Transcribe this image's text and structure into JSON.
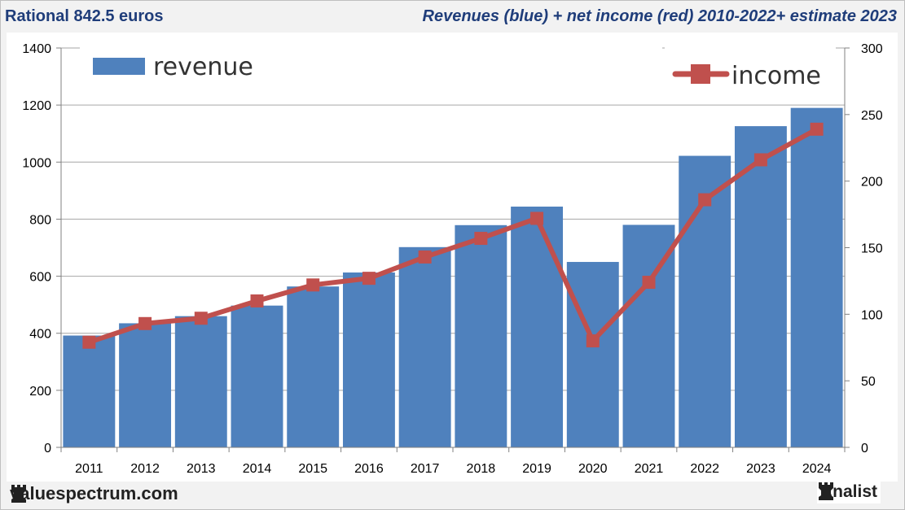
{
  "header": {
    "left_title": "Rational 842.5 euros",
    "right_title": "Revenues (blue) + net income (red) 2010-2022+ estimate 2023"
  },
  "footer": {
    "site": "valuespectrum.com",
    "brand": "Analist"
  },
  "colors": {
    "bar": "#4f81bd",
    "line": "#c0504d",
    "title": "#1f3d7a"
  },
  "chart_data": {
    "type": "bar",
    "categories": [
      "2011",
      "2012",
      "2013",
      "2014",
      "2015",
      "2016",
      "2017",
      "2018",
      "2019",
      "2020",
      "2021",
      "2022",
      "2023",
      "2024"
    ],
    "series": [
      {
        "name": "revenue",
        "type": "bar",
        "axis": "left",
        "values": [
          392,
          435,
          460,
          497,
          564,
          613,
          702,
          779,
          844,
          650,
          780,
          1022,
          1126,
          1190
        ]
      },
      {
        "name": "income",
        "type": "line",
        "axis": "right",
        "values": [
          79,
          93,
          97,
          110,
          122,
          127,
          143,
          157,
          172,
          80,
          124,
          186,
          216,
          239
        ]
      }
    ],
    "y_left": {
      "min": 0,
      "max": 1400,
      "ticks": [
        0,
        200,
        400,
        600,
        800,
        1000,
        1200,
        1400
      ]
    },
    "y_right": {
      "min": 0,
      "max": 300,
      "ticks": [
        0,
        50,
        100,
        150,
        200,
        250,
        300
      ]
    },
    "grid": true,
    "legend": [
      "top-left",
      "top-right"
    ]
  }
}
